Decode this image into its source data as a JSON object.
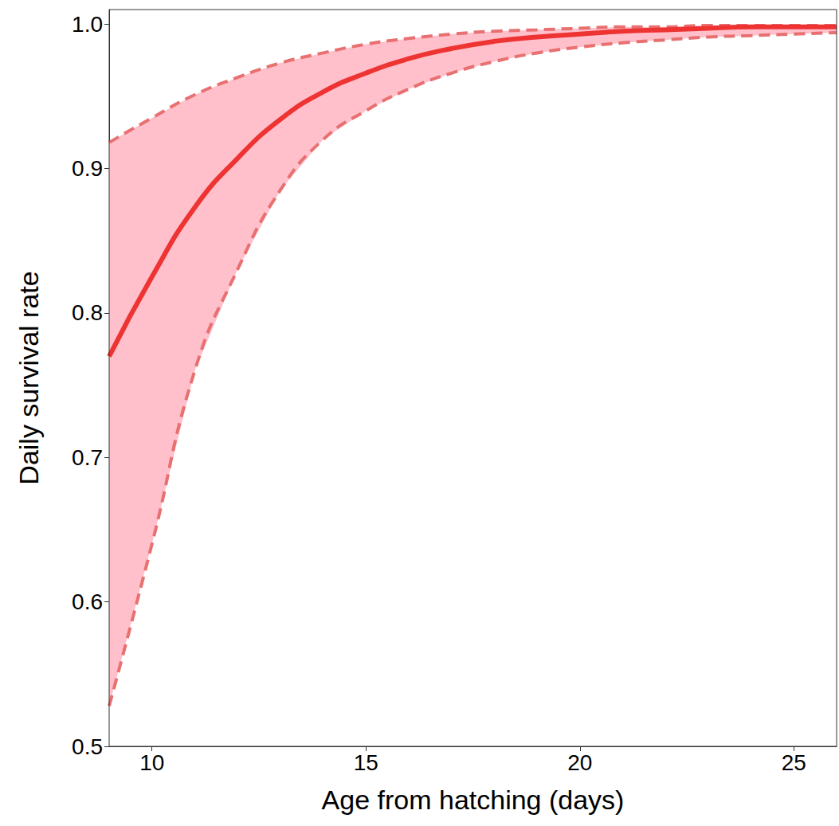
{
  "chart_data": {
    "type": "line",
    "xlabel": "Age from hatching (days)",
    "ylabel": "Daily survival rate",
    "x": [
      9,
      10,
      11,
      12,
      13,
      14,
      15,
      16,
      17,
      18,
      19,
      20,
      21,
      22,
      23,
      24,
      25,
      26
    ],
    "values": [
      0.77,
      0.825,
      0.873,
      0.907,
      0.934,
      0.953,
      0.966,
      0.976,
      0.983,
      0.988,
      0.991,
      0.993,
      0.995,
      0.996,
      0.997,
      0.998,
      0.998,
      0.998
    ],
    "lower": [
      0.528,
      0.64,
      0.76,
      0.83,
      0.885,
      0.92,
      0.94,
      0.955,
      0.966,
      0.974,
      0.98,
      0.984,
      0.987,
      0.989,
      0.991,
      0.992,
      0.993,
      0.994
    ],
    "upper": [
      0.918,
      0.935,
      0.951,
      0.963,
      0.973,
      0.98,
      0.986,
      0.99,
      0.993,
      0.995,
      0.996,
      0.997,
      0.998,
      0.998,
      0.999,
      0.999,
      0.999,
      0.999
    ],
    "color": "#ee3333",
    "xlim": [
      9,
      26
    ],
    "ylim": [
      0.5,
      1.01
    ],
    "xticks": [
      10,
      15,
      20,
      25
    ],
    "yticks": [
      0.5,
      0.6,
      0.7,
      0.8,
      0.9,
      {
        "value": 1,
        "label": "1.0"
      }
    ]
  }
}
